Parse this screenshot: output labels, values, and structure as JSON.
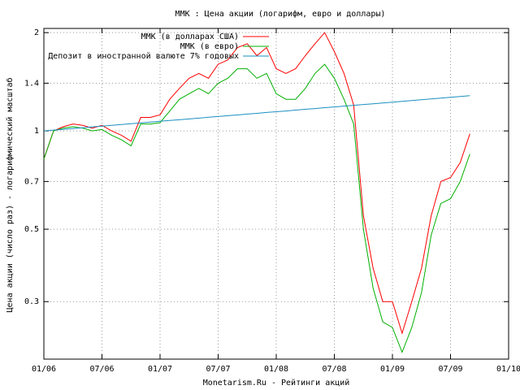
{
  "chart_data": {
    "type": "line",
    "title": "ММК : Цена акции (логарифм, евро и доллары)",
    "ylabel": "Цена акции (число раз) - логарифмический масштаб",
    "xlabel": "Monetarism.Ru - Рейтинги акций",
    "log_y": true,
    "grid": true,
    "legend": "top",
    "x": [
      "2006-01",
      "2006-02",
      "2006-03",
      "2006-04",
      "2006-05",
      "2006-06",
      "2006-07",
      "2006-08",
      "2006-09",
      "2006-10",
      "2006-11",
      "2006-12",
      "2007-01",
      "2007-02",
      "2007-03",
      "2007-04",
      "2007-05",
      "2007-06",
      "2007-07",
      "2007-08",
      "2007-09",
      "2007-10",
      "2007-11",
      "2007-12",
      "2008-01",
      "2008-02",
      "2008-03",
      "2008-04",
      "2008-05",
      "2008-06",
      "2008-07",
      "2008-08",
      "2008-09",
      "2008-10",
      "2008-11",
      "2008-12",
      "2009-01",
      "2009-02",
      "2009-03",
      "2009-04",
      "2009-05",
      "2009-06",
      "2009-07",
      "2009-08",
      "2009-09"
    ],
    "series": [
      {
        "name": "ММК (в долларах США)",
        "color": "#ff0000",
        "values": [
          0.82,
          1.0,
          1.03,
          1.05,
          1.04,
          1.02,
          1.04,
          1.0,
          0.97,
          0.93,
          1.1,
          1.1,
          1.12,
          1.25,
          1.35,
          1.45,
          1.5,
          1.45,
          1.6,
          1.65,
          1.8,
          1.85,
          1.7,
          1.8,
          1.55,
          1.5,
          1.55,
          1.7,
          1.85,
          2.0,
          1.75,
          1.5,
          1.2,
          0.55,
          0.38,
          0.3,
          0.3,
          0.24,
          0.3,
          0.38,
          0.55,
          0.7,
          0.72,
          0.8,
          0.98
        ]
      },
      {
        "name": "ММК (в евро)",
        "color": "#00b000",
        "values": [
          0.82,
          1.0,
          1.02,
          1.03,
          1.02,
          1.0,
          1.01,
          0.97,
          0.94,
          0.9,
          1.05,
          1.05,
          1.06,
          1.15,
          1.25,
          1.3,
          1.35,
          1.3,
          1.4,
          1.45,
          1.55,
          1.55,
          1.45,
          1.5,
          1.3,
          1.25,
          1.25,
          1.35,
          1.5,
          1.6,
          1.45,
          1.25,
          1.05,
          0.5,
          0.33,
          0.26,
          0.25,
          0.21,
          0.25,
          0.32,
          0.48,
          0.6,
          0.62,
          0.7,
          0.85
        ]
      },
      {
        "name": "Депозит в иностранной валюте 7% годовых",
        "color": "#1a8fc0",
        "values": [
          1.0,
          1.006,
          1.011,
          1.017,
          1.023,
          1.029,
          1.034,
          1.04,
          1.046,
          1.052,
          1.058,
          1.064,
          1.07,
          1.076,
          1.082,
          1.088,
          1.094,
          1.101,
          1.107,
          1.113,
          1.119,
          1.126,
          1.132,
          1.139,
          1.145,
          1.151,
          1.158,
          1.165,
          1.171,
          1.178,
          1.184,
          1.191,
          1.198,
          1.205,
          1.211,
          1.218,
          1.225,
          1.232,
          1.239,
          1.246,
          1.253,
          1.26,
          1.268,
          1.275,
          1.282
        ]
      }
    ],
    "xlim": [
      "2006-01",
      "2010-01"
    ],
    "xticks": [
      {
        "value": "2006-01",
        "label": "01/06"
      },
      {
        "value": "2006-07",
        "label": "07/06"
      },
      {
        "value": "2007-01",
        "label": "01/07"
      },
      {
        "value": "2007-07",
        "label": "07/07"
      },
      {
        "value": "2008-01",
        "label": "01/08"
      },
      {
        "value": "2008-07",
        "label": "07/08"
      },
      {
        "value": "2009-01",
        "label": "01/09"
      },
      {
        "value": "2009-07",
        "label": "07/09"
      },
      {
        "value": "2010-01",
        "label": "01/10"
      }
    ],
    "ylim": [
      0.2,
      2.06
    ],
    "yticks": [
      0.3,
      0.5,
      0.7,
      1,
      1.4,
      2
    ]
  }
}
